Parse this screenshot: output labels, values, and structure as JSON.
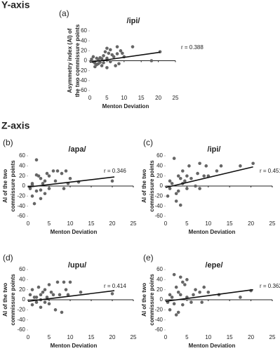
{
  "sections": [
    "Y-axis",
    "Z-axis"
  ],
  "chart_data": [
    {
      "type": "scatter",
      "panel_label": "(a)",
      "title": "/ipi/",
      "xlabel": "Menton Deviation",
      "ylabel": [
        "Asymmetry index (AI) of",
        "the two commissure points"
      ],
      "r_label": "r = 0.388",
      "xlim": [
        0,
        25
      ],
      "ylim": [
        -60,
        60
      ],
      "xticks": [
        0,
        5,
        10,
        15,
        20,
        25
      ],
      "yticks": [
        -60,
        -40,
        -20,
        0,
        20,
        40,
        60
      ],
      "color": "#666666",
      "line_color": "#111111",
      "x": [
        0.5,
        1,
        1,
        1.5,
        2,
        2,
        2.5,
        3,
        3,
        3.5,
        4,
        4,
        4.5,
        5,
        5,
        5.5,
        6,
        6,
        6.5,
        7,
        7.5,
        8,
        8,
        8.5,
        9,
        9.5,
        10,
        12.5,
        18,
        20.5,
        1.5,
        2.5,
        3.5,
        5
      ],
      "y": [
        3,
        -2,
        8,
        -5,
        5,
        -8,
        2,
        6,
        -3,
        -10,
        10,
        -4,
        18,
        25,
        5,
        15,
        22,
        -2,
        12,
        8,
        -10,
        14,
        28,
        -6,
        20,
        15,
        8,
        28,
        0,
        18,
        -12,
        -6,
        4,
        -14
      ],
      "trendline": {
        "x": [
          0,
          20.5
        ],
        "y": [
          -3,
          17
        ]
      }
    },
    {
      "type": "scatter",
      "panel_label": "(b)",
      "title": "/apa/",
      "xlabel": "Menton Deviation",
      "ylabel": [
        "AI of the two",
        "commissure points"
      ],
      "r_label": "r = 0.346",
      "xlim": [
        0,
        25
      ],
      "ylim": [
        -60,
        60
      ],
      "xticks": [
        0,
        5,
        10,
        15,
        20,
        25
      ],
      "yticks": [
        -60,
        -40,
        -20,
        0,
        20,
        40,
        60
      ],
      "color": "#666666",
      "line_color": "#111111",
      "x": [
        0.5,
        1,
        1,
        1.5,
        2,
        2,
        2.5,
        3,
        3,
        3.5,
        4,
        4,
        4.5,
        5,
        5,
        6,
        6.5,
        7,
        8,
        8.5,
        9,
        9.5,
        10,
        12,
        20,
        2,
        3,
        1
      ],
      "y": [
        -5,
        -20,
        5,
        -35,
        52,
        -10,
        20,
        -25,
        15,
        5,
        10,
        -15,
        25,
        20,
        -5,
        30,
        10,
        30,
        25,
        -5,
        30,
        5,
        15,
        8,
        10,
        22,
        -8,
        2
      ],
      "trendline": {
        "x": [
          0,
          20.5
        ],
        "y": [
          -2,
          18
        ]
      }
    },
    {
      "type": "scatter",
      "panel_label": "(c)",
      "title": "/ipi/",
      "xlabel": "Menton Deviation",
      "ylabel": [
        "AI of the two",
        "commissure points"
      ],
      "r_label": "r = 0.451",
      "xlim": [
        0,
        25
      ],
      "ylim": [
        -60,
        60
      ],
      "xticks": [
        0,
        5,
        10,
        15,
        20,
        25
      ],
      "yticks": [
        -60,
        -40,
        -20,
        0,
        20,
        40,
        60
      ],
      "color": "#666666",
      "line_color": "#111111",
      "x": [
        0.5,
        1,
        1,
        1.5,
        2,
        2.5,
        3,
        3,
        3.5,
        4,
        4,
        4.5,
        5,
        5,
        5.5,
        6,
        7,
        7.5,
        8,
        8,
        9,
        9.5,
        10,
        12,
        13,
        17.5,
        20.5,
        2.5,
        3.5
      ],
      "y": [
        -20,
        10,
        -5,
        5,
        55,
        -30,
        20,
        -10,
        -38,
        30,
        5,
        10,
        20,
        -5,
        40,
        15,
        0,
        25,
        45,
        -5,
        20,
        40,
        20,
        30,
        40,
        40,
        45,
        -15,
        15
      ],
      "trendline": {
        "x": [
          0,
          20.5
        ],
        "y": [
          -3,
          38
        ]
      }
    },
    {
      "type": "scatter",
      "panel_label": "(d)",
      "title": "/upu/",
      "xlabel": "Menton Deviation",
      "ylabel": [
        "AI of the two",
        "commissure points"
      ],
      "r_label": "r = 0.414",
      "xlim": [
        0,
        25
      ],
      "ylim": [
        -60,
        60
      ],
      "xticks": [
        0,
        5,
        10,
        15,
        20,
        25
      ],
      "yticks": [
        -60,
        -40,
        -20,
        0,
        20,
        40,
        60
      ],
      "color": "#666666",
      "line_color": "#111111",
      "x": [
        0.5,
        1,
        1,
        1.5,
        2,
        2.5,
        3,
        3,
        3.5,
        4,
        4,
        4.5,
        5,
        5,
        5.5,
        6,
        6.5,
        7,
        7.5,
        8,
        8.5,
        9,
        9.5,
        10,
        12.5,
        20,
        2,
        3
      ],
      "y": [
        10,
        -10,
        20,
        5,
        -5,
        25,
        -15,
        10,
        15,
        -5,
        20,
        5,
        30,
        -8,
        15,
        10,
        -20,
        35,
        10,
        -25,
        35,
        20,
        10,
        35,
        15,
        12,
        5,
        0
      ],
      "trendline": {
        "x": [
          0,
          20.5
        ],
        "y": [
          -3,
          18
        ]
      }
    },
    {
      "type": "scatter",
      "panel_label": "(e)",
      "title": "/epe/",
      "xlabel": "Menton Deviation",
      "ylabel": [
        "AI of the two",
        "commissure points"
      ],
      "r_label": "r = 0.362",
      "xlim": [
        0,
        25
      ],
      "ylim": [
        -60,
        60
      ],
      "xticks": [
        0,
        5,
        10,
        15,
        20,
        25
      ],
      "yticks": [
        -60,
        -40,
        -20,
        0,
        20,
        40,
        60
      ],
      "color": "#666666",
      "line_color": "#111111",
      "x": [
        0.5,
        1,
        1,
        1.5,
        2,
        2,
        2.5,
        3,
        3,
        3.5,
        4,
        4,
        4.5,
        5,
        5,
        6,
        6.5,
        7,
        8,
        8.5,
        9,
        10,
        12.5,
        17.5,
        20,
        3.5,
        2.5
      ],
      "y": [
        -5,
        -20,
        10,
        5,
        50,
        -8,
        25,
        -25,
        15,
        10,
        35,
        -10,
        30,
        5,
        40,
        -5,
        10,
        20,
        15,
        -5,
        25,
        15,
        10,
        5,
        18,
        45,
        -30
      ],
      "trendline": {
        "x": [
          0,
          20.5
        ],
        "y": [
          -3,
          20
        ]
      }
    }
  ]
}
